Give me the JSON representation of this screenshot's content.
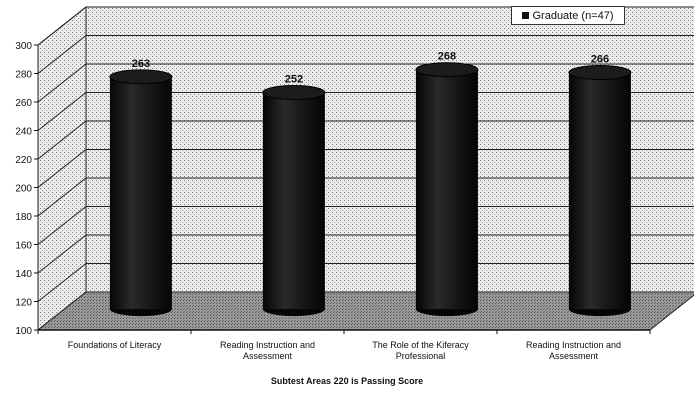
{
  "chart_data": {
    "type": "bar",
    "categories": [
      "Foundations of Literacy",
      "Reading Instruction and Assessment",
      "The Role of the Kiferacy Professional",
      "Reading Instruction and Assessment"
    ],
    "category_lines": [
      [
        "Foundations of Literacy"
      ],
      [
        "Reading Instruction and",
        "Assessment"
      ],
      [
        "The Role of the Kiferacy",
        "Professional"
      ],
      [
        "Reading Instruction and",
        "Assessment"
      ]
    ],
    "series": [
      {
        "name": "Graduate (n=47)",
        "values": [
          263,
          252,
          268,
          266
        ]
      }
    ],
    "data_labels": [
      "263",
      "252",
      "268",
      "266"
    ],
    "ylim": [
      100,
      300
    ],
    "yticks": [
      100,
      120,
      140,
      160,
      180,
      200,
      220,
      240,
      260,
      280,
      300
    ],
    "xlabel": "Subtest Areas  220 is Passing Score",
    "ylabel": "",
    "grid": true,
    "legend_position": "top-right",
    "bar_shape": "cylinder",
    "colors": {
      "bar": "#121212",
      "wall": "#d6d6d6",
      "floor": "#8c8c8c",
      "grid": "#222222"
    }
  }
}
